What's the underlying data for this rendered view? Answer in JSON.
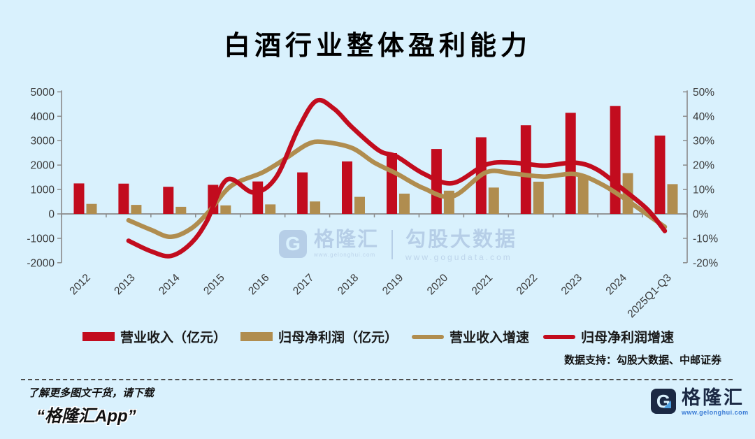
{
  "title": "白酒行业整体盈利能力",
  "chart_data": {
    "type": "combo-bar-line",
    "categories": [
      "2012",
      "2013",
      "2014",
      "2015",
      "2016",
      "2017",
      "2018",
      "2019",
      "2020",
      "2021",
      "2022",
      "2023",
      "2024",
      "2025Q1-Q3"
    ],
    "left_axis": {
      "labels": [
        "5000",
        "4000",
        "3000",
        "2000",
        "1000",
        "0",
        "-1000",
        "-2000"
      ],
      "min": -2000,
      "max": 5000
    },
    "right_axis": {
      "labels": [
        "50%",
        "40%",
        "30%",
        "20%",
        "10%",
        "0%",
        "-10%",
        "-20%"
      ],
      "min": -20,
      "max": 50
    },
    "grid": false,
    "legend_position": "bottom",
    "series": [
      {
        "name": "营业收入（亿元）",
        "type": "bar",
        "axis": "left",
        "color": "#c20c1e",
        "values": [
          1250,
          1240,
          1110,
          1190,
          1330,
          1700,
          2150,
          2490,
          2660,
          3140,
          3630,
          4140,
          4420,
          3210
        ]
      },
      {
        "name": "归母净利润（亿元）",
        "type": "bar",
        "axis": "left",
        "color": "#b08d4f",
        "values": [
          410,
          370,
          290,
          350,
          390,
          510,
          700,
          830,
          950,
          1080,
          1320,
          1550,
          1670,
          1220
        ]
      },
      {
        "name": "营业收入增速",
        "type": "line",
        "axis": "right",
        "color": "#b08d4f",
        "unit": "%",
        "points": [
          [
            1,
            -2.6
          ],
          [
            1.5,
            -6.5
          ],
          [
            1.95,
            -9.4
          ],
          [
            2.4,
            -6
          ],
          [
            2.8,
            1
          ],
          [
            3.3,
            11.5
          ],
          [
            4,
            17
          ],
          [
            4.5,
            22.5
          ],
          [
            5,
            28.5
          ],
          [
            5.35,
            29.5
          ],
          [
            6,
            27
          ],
          [
            6.5,
            21
          ],
          [
            7,
            16.5
          ],
          [
            7.6,
            10.5
          ],
          [
            8.25,
            7.2
          ],
          [
            9,
            17
          ],
          [
            9.6,
            16.5
          ],
          [
            10.3,
            15.3
          ],
          [
            11,
            16.3
          ],
          [
            11.6,
            12
          ],
          [
            12.2,
            5
          ],
          [
            12.7,
            -1.5
          ],
          [
            13,
            -5.3
          ]
        ]
      },
      {
        "name": "归母净利润增速",
        "type": "line",
        "axis": "right",
        "color": "#c20c1e",
        "unit": "%",
        "points": [
          [
            1,
            -11
          ],
          [
            1.5,
            -15.3
          ],
          [
            1.95,
            -17.2
          ],
          [
            2.4,
            -12
          ],
          [
            2.75,
            -3
          ],
          [
            3.2,
            14
          ],
          [
            3.8,
            8.8
          ],
          [
            4.3,
            15
          ],
          [
            4.8,
            35
          ],
          [
            5.2,
            46.3
          ],
          [
            5.6,
            43
          ],
          [
            6,
            35.5
          ],
          [
            6.6,
            26
          ],
          [
            7,
            23.5
          ],
          [
            7.6,
            16.5
          ],
          [
            8.25,
            12.6
          ],
          [
            9,
            20.2
          ],
          [
            9.6,
            21
          ],
          [
            10.3,
            19.8
          ],
          [
            11,
            21
          ],
          [
            11.5,
            18
          ],
          [
            12,
            11
          ],
          [
            12.6,
            2
          ],
          [
            13,
            -7
          ]
        ]
      }
    ]
  },
  "legend": {
    "items": [
      {
        "label": "营业收入（亿元）",
        "swatch": "bar",
        "color": "#c20c1e"
      },
      {
        "label": "归母净利润（亿元）",
        "swatch": "bar",
        "color": "#b08d4f"
      },
      {
        "label": "营业收入增速",
        "swatch": "line",
        "color": "#b08d4f"
      },
      {
        "label": "归母净利润增速",
        "swatch": "line",
        "color": "#c20c1e"
      }
    ]
  },
  "source_note": "数据支持：勾股大数据、中邮证券",
  "watermark": {
    "glyph": "G",
    "brand": "格隆汇",
    "brand_url": "www.gelonghui.com",
    "partner": "勾股大数据",
    "partner_url": "www.gogudata.com"
  },
  "footer": {
    "promo_line1": "了解更多图文干货，请下载",
    "promo_line2": "“格隆汇App”",
    "logo_glyph": "G",
    "logo_text": "格隆汇",
    "logo_url": "www.gelonghui.com"
  },
  "colors": {
    "background": "#d9f1fd",
    "revenue_red": "#c20c1e",
    "profit_gold": "#b08d4f",
    "axis_line": "#8a8a8a",
    "tick_text": "#3a3a3a",
    "watermark": "#b5cde6",
    "logo_navy": "#1b2944",
    "logo_blue": "#3a7bd5"
  }
}
